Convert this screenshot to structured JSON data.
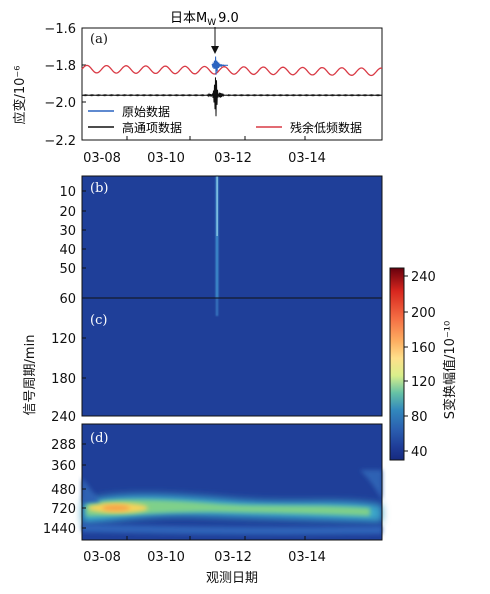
{
  "chart_data": [
    {
      "type": "line",
      "panel": "(a)",
      "ylabel": "应变/10⁻⁶",
      "ylim": [
        -2.2,
        -1.6
      ],
      "y_ticks": [
        "−1.6",
        "−1.8",
        "−2.0",
        "−2.2"
      ],
      "x_ticks": [
        "03-08",
        "03-10",
        "03-12",
        "03-14"
      ],
      "event_annotation": "日本M",
      "event_sub": "W",
      "event_mag": "9.0",
      "event_x": "03-11",
      "legend": [
        "原始数据",
        "高通项数据",
        "残余低频数据"
      ],
      "series": [
        {
          "name": "原始数据",
          "color": "#2a63c0"
        },
        {
          "name": "高通项数据",
          "color": "#111111",
          "baseline": -1.96
        },
        {
          "name": "残余低频数据",
          "color": "#d93a45",
          "baseline": -1.82,
          "amplitude": 0.02
        }
      ]
    },
    {
      "type": "heatmap",
      "panel": "(b)",
      "y_ticks": [
        "10",
        "20",
        "30",
        "40",
        "50",
        "60"
      ]
    },
    {
      "type": "heatmap",
      "panel": "(c)",
      "y_ticks": [
        "120",
        "180",
        "240"
      ]
    },
    {
      "type": "heatmap",
      "panel": "(d)",
      "y_ticks": [
        "288",
        "360",
        "480",
        "720",
        "1440"
      ],
      "x_ticks": [
        "03-08",
        "03-10",
        "03-12",
        "03-14"
      ]
    }
  ],
  "shared_ylabel": "信号周期/min",
  "xlabel": "观测日期",
  "colorbar": {
    "label": "S变换幅值/10⁻¹⁰",
    "ticks": [
      "240",
      "200",
      "160",
      "120",
      "80",
      "40"
    ],
    "colors": [
      "#67000d",
      "#d7261e",
      "#f46d43",
      "#fdae61",
      "#fee08b",
      "#d9ef8b",
      "#66c2a5",
      "#3288bd",
      "#2b5fb0",
      "#1f3d98",
      "#162a80"
    ]
  },
  "heat_bg": "#1f3f99"
}
